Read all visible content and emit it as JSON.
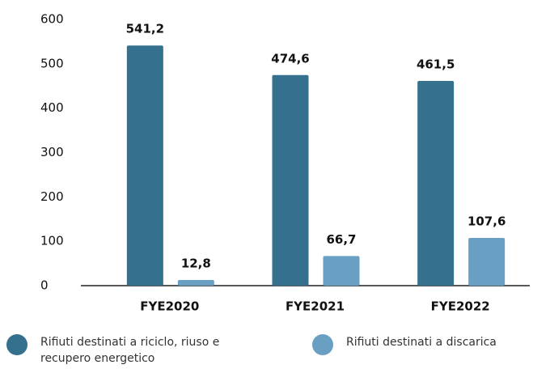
{
  "chart_data": {
    "type": "bar",
    "categories": [
      "FYE2020",
      "FYE2021",
      "FYE2022"
    ],
    "series": [
      {
        "name": "Rifiuti destinati a riciclo, riuso e recupero energetico",
        "color": "#36708f",
        "values": [
          541.2,
          474.6,
          461.5
        ],
        "value_labels": [
          "541,2",
          "474,6",
          "461,5"
        ]
      },
      {
        "name": "Rifiuti destinati a discarica",
        "color": "#6a9fc4",
        "values": [
          12.8,
          66.7,
          107.6
        ],
        "value_labels": [
          "12,8",
          "66,7",
          "107,6"
        ]
      }
    ],
    "ylim": [
      0,
      600
    ],
    "yticks": [
      0,
      100,
      200,
      300,
      400,
      500,
      600
    ],
    "grid": false,
    "legend": "bottom"
  }
}
